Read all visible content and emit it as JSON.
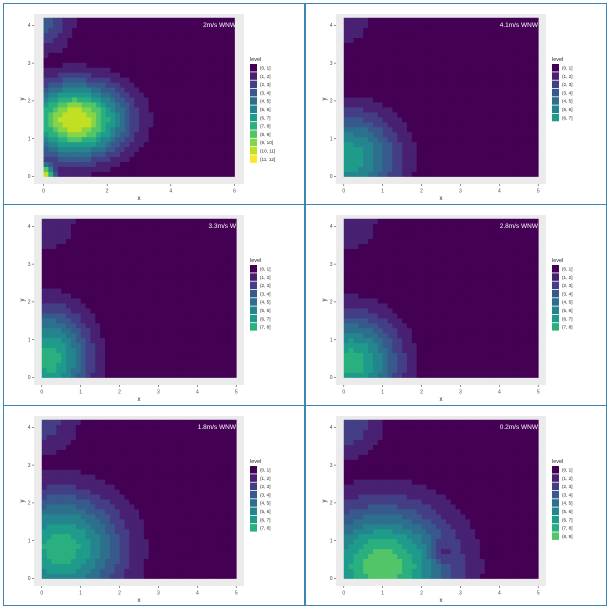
{
  "palette": {
    "level": [
      "#440154",
      "#482173",
      "#433e85",
      "#38598c",
      "#2d708e",
      "#25858e",
      "#1e9b8a",
      "#2ab07f",
      "#52c569",
      "#86d549",
      "#c2df23",
      "#fde725"
    ],
    "panel_bg": "#ebebeb",
    "label_color": "#ffffff",
    "frame_color": "#3a86b4"
  },
  "chart_data": [
    {
      "type": "heatmap",
      "subtype": "filled-contour",
      "annotation": "2m/s WNW",
      "xlabel": "x",
      "ylabel": "y",
      "xlim": [
        -0.3,
        6.3
      ],
      "ylim": [
        -0.2,
        4.3
      ],
      "xticks": [
        0,
        2,
        4,
        6
      ],
      "yticks": [
        0,
        1,
        2,
        3,
        4
      ],
      "legend": {
        "title": "level",
        "position": "right",
        "entries": [
          "(0, 1]",
          "(1, 2]",
          "(2, 3]",
          "(3, 4]",
          "(4, 5]",
          "(5, 6]",
          "(6, 7]",
          "(7, 8]",
          "(8, 9]",
          "(9, 10]",
          "(10, 11]",
          "(11, 12]"
        ]
      },
      "field": {
        "x0": 0,
        "x1": 6,
        "y0": 0,
        "y1": 4.2,
        "peak_x": 1.0,
        "peak_y": 1.5,
        "peak_value": 11.0,
        "decay_x": 1.55,
        "decay_y": 0.95,
        "corner_value": 11.8,
        "corner_decay": 0.35,
        "nw_value": 3.5,
        "nw_decay": 0.9,
        "dip_value": 0,
        "dip_x": 0,
        "dip_y": 0,
        "dip_decay": 0.3
      }
    },
    {
      "type": "heatmap",
      "subtype": "filled-contour",
      "annotation": "4.1m/s WNW",
      "xlabel": "x",
      "ylabel": "y",
      "xlim": [
        -0.2,
        5.2
      ],
      "ylim": [
        -0.2,
        4.3
      ],
      "xticks": [
        0,
        1,
        2,
        3,
        4,
        5
      ],
      "yticks": [
        0,
        1,
        2,
        3,
        4
      ],
      "legend": {
        "title": "level",
        "position": "right",
        "entries": [
          "(0, 1]",
          "(1, 2]",
          "(2, 3]",
          "(3, 4]",
          "(4, 5]",
          "(5, 6]",
          "(6, 7]"
        ]
      },
      "field": {
        "x0": 0,
        "x1": 5,
        "y0": 0,
        "y1": 4.2,
        "peak_x": 0.15,
        "peak_y": 0.5,
        "peak_value": 6.6,
        "decay_x": 1.25,
        "decay_y": 1.2,
        "corner_value": 0,
        "corner_decay": 0.35,
        "nw_value": 1.5,
        "nw_decay": 1.0,
        "dip_value": 0,
        "dip_x": 0,
        "dip_y": 0,
        "dip_decay": 0.3
      }
    },
    {
      "type": "heatmap",
      "subtype": "filled-contour",
      "annotation": "3.3m/s W",
      "xlabel": "x",
      "ylabel": "y",
      "xlim": [
        -0.2,
        5.2
      ],
      "ylim": [
        -0.2,
        4.3
      ],
      "xticks": [
        0,
        1,
        2,
        3,
        4,
        5
      ],
      "yticks": [
        0,
        1,
        2,
        3,
        4
      ],
      "legend": {
        "title": "level",
        "position": "right",
        "entries": [
          "(0, 1]",
          "(1, 2]",
          "(2, 3]",
          "(3, 4]",
          "(4, 5]",
          "(5, 6]",
          "(6, 7]",
          "(7, 8]"
        ]
      },
      "field": {
        "x0": 0,
        "x1": 5,
        "y0": 0,
        "y1": 4.2,
        "peak_x": 0.2,
        "peak_y": 0.5,
        "peak_value": 7.5,
        "decay_x": 1.0,
        "decay_y": 1.3,
        "corner_value": 0,
        "corner_decay": 0.35,
        "nw_value": 2.0,
        "nw_decay": 1.0,
        "dip_value": 0,
        "dip_x": 0,
        "dip_y": 0,
        "dip_decay": 0.3
      }
    },
    {
      "type": "heatmap",
      "subtype": "filled-contour",
      "annotation": "2.8m/s WNW",
      "xlabel": "x",
      "ylabel": "y",
      "xlim": [
        -0.2,
        5.2
      ],
      "ylim": [
        -0.2,
        4.3
      ],
      "xticks": [
        0,
        1,
        2,
        3,
        4,
        5
      ],
      "yticks": [
        0,
        1,
        2,
        3,
        4
      ],
      "legend": {
        "title": "level",
        "position": "right",
        "entries": [
          "(0, 1]",
          "(1, 2]",
          "(2, 3]",
          "(3, 4]",
          "(4, 5]",
          "(5, 6]",
          "(6, 7]",
          "(7, 8]"
        ]
      },
      "field": {
        "x0": 0,
        "x1": 5,
        "y0": 0,
        "y1": 4.2,
        "peak_x": 0.2,
        "peak_y": 0.4,
        "peak_value": 7.5,
        "decay_x": 1.2,
        "decay_y": 1.25,
        "corner_value": 0,
        "corner_decay": 0.35,
        "nw_value": 2.0,
        "nw_decay": 1.0,
        "dip_value": 0,
        "dip_x": 0,
        "dip_y": 0,
        "dip_decay": 0.3
      }
    },
    {
      "type": "heatmap",
      "subtype": "filled-contour",
      "annotation": "1.8m/s WNW",
      "xlabel": "x",
      "ylabel": "y",
      "xlim": [
        -0.2,
        5.2
      ],
      "ylim": [
        -0.2,
        4.3
      ],
      "xticks": [
        0,
        1,
        2,
        3,
        4,
        5
      ],
      "yticks": [
        0,
        1,
        2,
        3,
        4
      ],
      "legend": {
        "title": "level",
        "position": "right",
        "entries": [
          "(0, 1]",
          "(1, 2]",
          "(2, 3]",
          "(3, 4]",
          "(4, 5]",
          "(5, 6]",
          "(6, 7]",
          "(7, 8]"
        ]
      },
      "field": {
        "x0": 0,
        "x1": 5,
        "y0": 0,
        "y1": 4.2,
        "peak_x": 0.5,
        "peak_y": 0.8,
        "peak_value": 7.6,
        "decay_x": 1.55,
        "decay_y": 1.45,
        "corner_value": 0,
        "corner_decay": 0.35,
        "nw_value": 2.5,
        "nw_decay": 1.0,
        "dip_value": 0,
        "dip_x": 0,
        "dip_y": 0,
        "dip_decay": 0.3
      }
    },
    {
      "type": "heatmap",
      "subtype": "filled-contour",
      "annotation": "0.2m/s WNW",
      "xlabel": "x",
      "ylabel": "y",
      "xlim": [
        -0.2,
        5.2
      ],
      "ylim": [
        -0.2,
        4.3
      ],
      "xticks": [
        0,
        1,
        2,
        3,
        4,
        5
      ],
      "yticks": [
        0,
        1,
        2,
        3,
        4
      ],
      "legend": {
        "title": "level",
        "position": "right",
        "entries": [
          "(0, 1]",
          "(1, 2]",
          "(2, 3]",
          "(3, 4]",
          "(4, 5]",
          "(5, 6]",
          "(6, 7]",
          "(7, 8]",
          "(8, 9]"
        ]
      },
      "field": {
        "x0": 0,
        "x1": 5,
        "y0": 0,
        "y1": 4.2,
        "peak_x": 1.0,
        "peak_y": 0.3,
        "peak_value": 8.7,
        "decay_x": 1.75,
        "decay_y": 1.6,
        "corner_value": 0,
        "corner_decay": 0.35,
        "nw_value": 3.0,
        "nw_decay": 1.0,
        "dip_value": -2.0,
        "dip_x": 2.5,
        "dip_y": 0.7,
        "dip_decay": 0.3
      }
    }
  ]
}
